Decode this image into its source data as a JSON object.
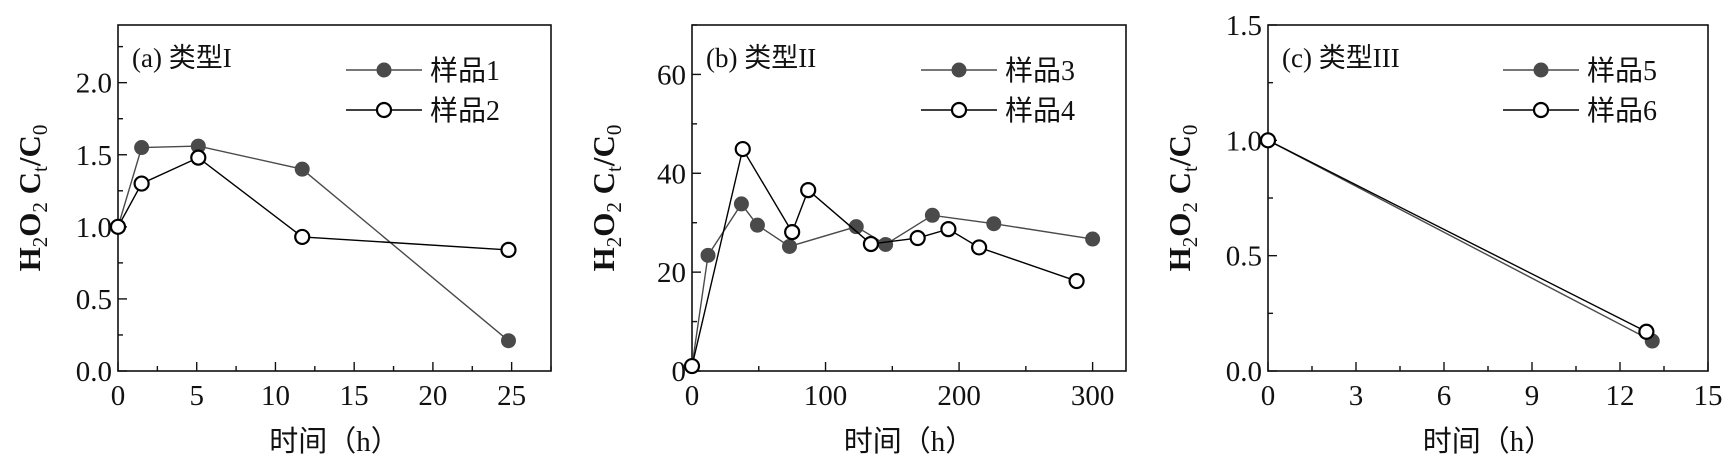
{
  "chart_data": [
    {
      "type": "line",
      "panel_label": "(a) 类型I",
      "xlabel": "时间（h）",
      "ylabel": "H2O2 Ct/C0",
      "xlim": [
        0,
        27.5
      ],
      "ylim": [
        0,
        2.4
      ],
      "xticks": [
        0,
        5,
        10,
        15,
        20,
        25
      ],
      "xtick_labels": [
        "0",
        "5",
        "10",
        "15",
        "20",
        "25"
      ],
      "yticks": [
        0,
        0.5,
        1.0,
        1.5,
        2.0
      ],
      "ytick_labels": [
        "0.0",
        "0.5",
        "1.0",
        "1.5",
        "2.0"
      ],
      "legend_position": "top-right",
      "series": [
        {
          "name": "样品1",
          "marker": "filled",
          "x": [
            0,
            1.5,
            5.1,
            11.7,
            24.8
          ],
          "y": [
            1.0,
            1.55,
            1.56,
            1.4,
            0.21
          ]
        },
        {
          "name": "样品2",
          "marker": "open",
          "x": [
            0,
            1.5,
            5.1,
            11.7,
            24.8
          ],
          "y": [
            1.0,
            1.3,
            1.48,
            0.93,
            0.84
          ]
        }
      ]
    },
    {
      "type": "line",
      "panel_label": "(b) 类型II",
      "xlabel": "时间（h）",
      "ylabel": "H2O2 Ct/C0",
      "xlim": [
        0,
        325
      ],
      "ylim": [
        0,
        70
      ],
      "xticks": [
        0,
        100,
        200,
        300
      ],
      "xtick_labels": [
        "0",
        "100",
        "200",
        "300"
      ],
      "yticks": [
        0,
        20,
        40,
        60
      ],
      "ytick_labels": [
        "0",
        "20",
        "40",
        "60"
      ],
      "legend_position": "top-right",
      "series": [
        {
          "name": "样品3",
          "marker": "filled",
          "x": [
            0,
            12,
            37,
            49,
            73,
            123,
            145,
            180,
            226,
            300
          ],
          "y": [
            1.0,
            23.4,
            33.8,
            29.5,
            25.2,
            29.2,
            25.6,
            31.5,
            29.8,
            26.7
          ]
        },
        {
          "name": "样品4",
          "marker": "open",
          "x": [
            0,
            38,
            75,
            87,
            134,
            169,
            192,
            215,
            288
          ],
          "y": [
            1.0,
            44.9,
            28.1,
            36.6,
            25.7,
            26.9,
            28.7,
            25.0,
            18.2
          ]
        }
      ]
    },
    {
      "type": "line",
      "panel_label": "(c) 类型III",
      "xlabel": "时间（h）",
      "ylabel": "H2O2 Ct/C0",
      "xlim": [
        0,
        15
      ],
      "ylim": [
        0,
        1.5
      ],
      "xticks": [
        0,
        3,
        6,
        9,
        12,
        15
      ],
      "xtick_labels": [
        "0",
        "3",
        "6",
        "9",
        "12",
        "15"
      ],
      "yticks": [
        0,
        0.5,
        1.0,
        1.5
      ],
      "ytick_labels": [
        "0.0",
        "0.5",
        "1.0",
        "1.5"
      ],
      "legend_position": "top-right",
      "series": [
        {
          "name": "样品5",
          "marker": "filled",
          "x": [
            0,
            13.1
          ],
          "y": [
            1.0,
            0.13
          ]
        },
        {
          "name": "样品6",
          "marker": "open",
          "x": [
            0,
            12.9
          ],
          "y": [
            1.0,
            0.17
          ]
        }
      ]
    }
  ],
  "colors": {
    "filled_series": "#4a4a4a",
    "open_series": "#000000",
    "axis": "#111111"
  }
}
